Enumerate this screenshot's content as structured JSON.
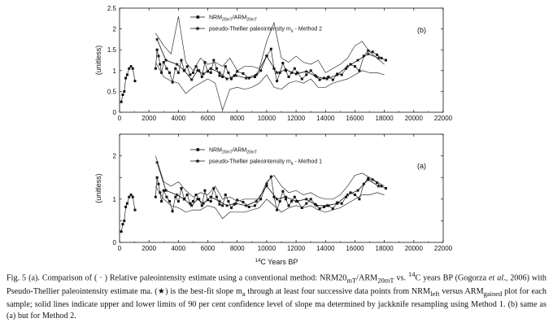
{
  "figure": {
    "xaxis_title_prefix": "14",
    "xaxis_title_main": "C Years BP"
  },
  "chart_data": [
    {
      "type": "line",
      "panel": "(b)",
      "ylabel": "(unitless)",
      "xlim": [
        0,
        22000
      ],
      "ylim": [
        0,
        2.5
      ],
      "xticks": [
        0,
        2000,
        4000,
        6000,
        8000,
        10000,
        12000,
        14000,
        16000,
        18000,
        20000,
        22000
      ],
      "yticks": [
        0,
        0.5,
        1,
        1.5,
        2,
        2.5
      ],
      "ytick_labels": [
        "0",
        "0.5",
        "1",
        "1.5",
        "2",
        "2.5"
      ],
      "legend": [
        {
          "marker": "square",
          "main": "NRM",
          "sub1": "20mT",
          "mid": "/ARM",
          "sub2": "20mT"
        },
        {
          "marker": "star",
          "text": "pseudo-Thellier paleointensity m",
          "sub": "a",
          "tail": " - Method 2"
        }
      ],
      "series": [
        {
          "name": "NRM20mT/ARM20mT",
          "style": "squares",
          "x": [
            120,
            220,
            320,
            420,
            520,
            650,
            780,
            900,
            1050,
            2450,
            2550,
            2650,
            2750,
            2850,
            3000,
            3200,
            3400,
            3600,
            3800,
            4000,
            4200,
            4400,
            4600,
            4800,
            5000,
            5200,
            5400,
            5600,
            5800,
            6000,
            6200,
            6400,
            6600,
            6800,
            7000,
            7200,
            7400,
            7600,
            7800,
            8000,
            8400,
            8800,
            9200,
            9600,
            10000,
            10300,
            10500,
            10700,
            10900,
            11100,
            11300,
            11500,
            11700,
            11900,
            12100,
            12400,
            12700,
            13000,
            13300,
            13600,
            13900,
            14200,
            14500,
            14800,
            15100,
            15400,
            15700,
            16000,
            16300,
            16600,
            16900,
            17200,
            17500,
            17800,
            18100
          ],
          "y": [
            0.25,
            0.42,
            0.5,
            0.82,
            0.9,
            1.05,
            1.1,
            1.05,
            0.75,
            1.05,
            1.5,
            1.35,
            1.15,
            0.95,
            1.2,
            1.05,
            0.95,
            0.72,
            1.05,
            0.95,
            1.25,
            1.0,
            1.1,
            0.9,
            0.95,
            1.1,
            1.0,
            0.85,
            1.2,
            0.98,
            0.95,
            1.25,
            1.05,
            0.88,
            0.85,
            1.1,
            0.95,
            0.8,
            0.88,
            0.98,
            0.93,
            0.82,
            0.85,
            1.0,
            1.35,
            1.52,
            1.05,
            0.75,
            0.95,
            1.18,
            1.0,
            0.85,
            0.95,
            1.05,
            0.95,
            0.8,
            0.9,
            1.0,
            0.88,
            0.78,
            0.82,
            0.85,
            0.78,
            0.92,
            0.9,
            1.05,
            1.15,
            1.1,
            1.0,
            1.35,
            1.48,
            1.45,
            1.38,
            1.3,
            1.25
          ]
        },
        {
          "name": "pseudo-Thellier ma - Method 2",
          "style": "stars",
          "x": [
            2550,
            3150,
            3900,
            4400,
            4900,
            5300,
            5700,
            6200,
            6800,
            7300,
            7900,
            8600,
            9300,
            10000,
            10700,
            11300,
            12000,
            12700,
            13400,
            14100,
            14800,
            15500,
            16200,
            16900,
            17600
          ],
          "y": [
            1.75,
            1.25,
            1.15,
            1.0,
            0.78,
            1.0,
            0.92,
            1.05,
            0.95,
            0.8,
            0.88,
            0.82,
            0.9,
            1.35,
            0.95,
            1.02,
            0.92,
            0.98,
            0.85,
            0.8,
            0.9,
            1.1,
            1.25,
            1.4,
            1.3
          ]
        },
        {
          "name": "upper 90% limit - Method 2",
          "style": "line",
          "x": [
            2450,
            3000,
            3500,
            4000,
            4500,
            5000,
            5500,
            6000,
            6500,
            7000,
            7500,
            8000,
            8500,
            9000,
            9500,
            10000,
            10500,
            11000,
            11500,
            12000,
            12500,
            13000,
            13500,
            14000,
            14500,
            15000,
            15500,
            16000,
            16500,
            17000,
            17500,
            18000
          ],
          "y": [
            1.9,
            1.6,
            1.4,
            2.3,
            1.2,
            1.0,
            1.3,
            1.15,
            1.2,
            1.1,
            1.3,
            1.0,
            1.1,
            1.1,
            1.05,
            1.7,
            2.15,
            1.3,
            1.2,
            1.35,
            1.2,
            1.15,
            1.25,
            0.95,
            1.05,
            1.15,
            1.3,
            1.6,
            1.7,
            1.45,
            1.3,
            1.15
          ]
        },
        {
          "name": "lower 90% limit - Method 2",
          "style": "line",
          "x": [
            2450,
            3000,
            3500,
            4000,
            4500,
            5000,
            5500,
            6000,
            6500,
            7000,
            7500,
            8000,
            8500,
            9000,
            9500,
            10000,
            10500,
            11000,
            11500,
            12000,
            12500,
            13000,
            13500,
            14000,
            14500,
            15000,
            15500,
            16000,
            16500,
            17000,
            17500,
            18000
          ],
          "y": [
            1.2,
            0.85,
            0.75,
            0.7,
            0.45,
            0.6,
            0.7,
            0.8,
            0.7,
            0.05,
            0.55,
            0.6,
            0.55,
            0.6,
            0.7,
            0.9,
            0.6,
            0.55,
            0.7,
            0.75,
            0.7,
            0.8,
            0.6,
            0.6,
            0.7,
            0.75,
            0.8,
            0.9,
            1.0,
            0.95,
            0.95,
            0.9
          ]
        }
      ]
    },
    {
      "type": "line",
      "panel": "(a)",
      "ylabel": "(unitless)",
      "xlim": [
        0,
        22000
      ],
      "ylim": [
        0,
        2.5
      ],
      "xticks": [
        0,
        2000,
        4000,
        6000,
        8000,
        10000,
        12000,
        14000,
        16000,
        18000,
        20000,
        22000
      ],
      "yticks": [
        0,
        0.5,
        1,
        1.5,
        2,
        2.5
      ],
      "ytick_labels": [
        "0",
        "",
        "1",
        "",
        "2",
        ""
      ],
      "legend": [
        {
          "marker": "square",
          "main": "NRM",
          "sub1": "20mT",
          "mid": "/ARM",
          "sub2": "20mT"
        },
        {
          "marker": "star",
          "text": "pseudo-Thellier paleointensity m",
          "sub": "a",
          "tail": " - Method 1"
        }
      ],
      "series": [
        {
          "name": "NRM20mT/ARM20mT",
          "style": "squares",
          "x": [
            120,
            220,
            320,
            420,
            520,
            650,
            780,
            900,
            1050,
            2450,
            2550,
            2650,
            2750,
            2850,
            3000,
            3200,
            3400,
            3600,
            3800,
            4000,
            4200,
            4400,
            4600,
            4800,
            5000,
            5200,
            5400,
            5600,
            5800,
            6000,
            6200,
            6400,
            6600,
            6800,
            7000,
            7200,
            7400,
            7600,
            7800,
            8000,
            8400,
            8800,
            9200,
            9600,
            10000,
            10300,
            10500,
            10700,
            10900,
            11100,
            11300,
            11500,
            11700,
            11900,
            12100,
            12400,
            12700,
            13000,
            13300,
            13600,
            13900,
            14200,
            14500,
            14800,
            15100,
            15400,
            15700,
            16000,
            16300,
            16600,
            16900,
            17200,
            17500,
            17800,
            18100
          ],
          "y": [
            0.25,
            0.42,
            0.5,
            0.82,
            0.9,
            1.05,
            1.1,
            1.05,
            0.75,
            1.05,
            1.5,
            1.35,
            1.15,
            0.95,
            1.2,
            1.05,
            0.95,
            0.72,
            1.05,
            0.95,
            1.25,
            1.0,
            1.1,
            0.9,
            0.95,
            1.1,
            1.0,
            0.85,
            1.2,
            0.98,
            0.95,
            1.25,
            1.05,
            0.88,
            0.85,
            1.1,
            0.95,
            0.8,
            0.88,
            0.98,
            0.93,
            0.82,
            0.85,
            1.0,
            1.35,
            1.52,
            1.05,
            0.75,
            0.95,
            1.18,
            1.0,
            0.85,
            0.95,
            1.05,
            0.95,
            0.8,
            0.9,
            1.0,
            0.88,
            0.78,
            0.82,
            0.85,
            0.78,
            0.92,
            0.9,
            1.05,
            1.15,
            1.1,
            1.0,
            1.35,
            1.48,
            1.45,
            1.38,
            1.3,
            1.25
          ]
        },
        {
          "name": "pseudo-Thellier ma - Method 1",
          "style": "stars",
          "x": [
            2550,
            3150,
            3900,
            4400,
            4900,
            5300,
            5700,
            6200,
            6800,
            7300,
            7900,
            8600,
            9300,
            10000,
            10700,
            11300,
            12000,
            12700,
            13400,
            14100,
            14800,
            15500,
            16200,
            16900,
            17600
          ],
          "y": [
            1.85,
            1.2,
            1.1,
            1.0,
            0.85,
            1.0,
            0.9,
            1.05,
            0.95,
            0.85,
            0.9,
            0.85,
            0.95,
            1.3,
            1.0,
            1.05,
            0.95,
            1.0,
            0.85,
            0.85,
            0.9,
            1.1,
            1.2,
            1.45,
            1.3
          ]
        },
        {
          "name": "upper 90% limit - Method 1",
          "style": "line",
          "x": [
            2450,
            3000,
            3500,
            4000,
            4500,
            5000,
            5500,
            6000,
            6500,
            7000,
            7500,
            8000,
            8500,
            9000,
            9500,
            10000,
            10500,
            11000,
            11500,
            12000,
            12500,
            13000,
            13500,
            14000,
            14500,
            15000,
            15500,
            16000,
            16500,
            17000,
            17500,
            18000
          ],
          "y": [
            2.0,
            1.4,
            1.3,
            1.4,
            1.2,
            1.05,
            1.15,
            1.1,
            1.3,
            1.0,
            1.05,
            0.95,
            1.0,
            1.0,
            1.0,
            1.4,
            1.55,
            1.3,
            1.15,
            1.2,
            1.1,
            1.15,
            1.05,
            1.0,
            1.0,
            1.1,
            1.3,
            1.55,
            1.6,
            1.5,
            1.4,
            1.3
          ]
        },
        {
          "name": "lower 90% limit - Method 1",
          "style": "line",
          "x": [
            2450,
            3000,
            3500,
            4000,
            4500,
            5000,
            5500,
            6000,
            6500,
            7000,
            7500,
            8000,
            8500,
            9000,
            9500,
            10000,
            10500,
            11000,
            11500,
            12000,
            12500,
            13000,
            13500,
            14000,
            14500,
            15000,
            15500,
            16000,
            16500,
            17000,
            17500,
            18000
          ],
          "y": [
            1.3,
            1.0,
            0.85,
            0.8,
            0.7,
            0.75,
            0.75,
            0.85,
            0.8,
            0.55,
            0.7,
            0.7,
            0.7,
            0.75,
            0.8,
            1.0,
            0.85,
            0.7,
            0.8,
            0.85,
            0.8,
            0.85,
            0.75,
            0.7,
            0.75,
            0.8,
            0.9,
            1.0,
            1.1,
            1.1,
            1.15,
            1.1
          ]
        }
      ]
    }
  ],
  "caption": {
    "figref": "Fig. 5 (a).",
    "t1": " Comparison of ( · ) Relative paleointensity estimate using a conventional method: NRM20",
    "sub_mT1": "mT",
    "t2": "/ARM",
    "sub_20mT": "20mT",
    "t3": " vs. ",
    "sup14": "14",
    "t4": "C years BP (Gogorza ",
    "etal": "et al.",
    "t5": ", 2006) with Pseudo-Thellier paleointensity estimate ma. (★) is the best-fit slope m",
    "sub_a": "a",
    "t6": " through at least four successive data points from NRM",
    "sub_left": "left",
    "t7": " versus ARM",
    "sub_gained": "gained",
    "t8": " plot for each sample; solid lines indicate upper and lower limits of 90 per cent confidence level of slope ma determined by jackknife resampling using Method 1. (b) same as (a) but for Method 2."
  }
}
